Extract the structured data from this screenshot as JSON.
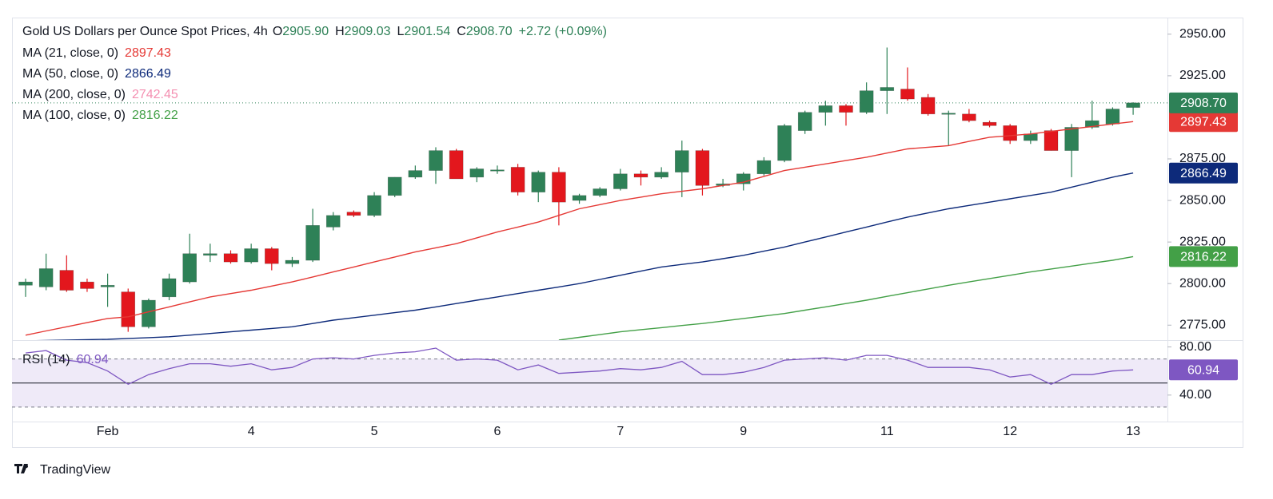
{
  "brand": "TradingView",
  "chart_data": [
    {
      "type": "candlestick",
      "title": "Gold US Dollars per Ounce Spot Prices, 4h",
      "ohlc_keys": [
        "O",
        "H",
        "L",
        "C"
      ],
      "ohlc_labels": [
        "2905.90",
        "2909.03",
        "2901.54",
        "2908.70"
      ],
      "change": "+2.72 (+0.09%)",
      "up_color": "#2e8157",
      "down_color": "#e3171d",
      "last_price_line": true,
      "categories": [
        null,
        null,
        null,
        null,
        "Feb",
        null,
        null,
        null,
        null,
        null,
        null,
        "4",
        null,
        null,
        null,
        null,
        null,
        "5",
        null,
        null,
        null,
        null,
        null,
        "6",
        null,
        null,
        null,
        null,
        null,
        "7",
        null,
        null,
        null,
        null,
        null,
        "9",
        null,
        null,
        null,
        null,
        null,
        null,
        "11",
        null,
        null,
        null,
        null,
        null,
        "12",
        null,
        null,
        null,
        null,
        null,
        "13"
      ],
      "open": [
        2799,
        2798,
        2808,
        2801,
        2798,
        2795,
        2774,
        2792,
        2801,
        2817,
        2818,
        2813,
        2821,
        2812,
        2814,
        2834,
        2843,
        2841,
        2853,
        2864,
        2868,
        2880,
        2864,
        2868,
        2870,
        2855,
        2867,
        2850,
        2853,
        2857,
        2866,
        2864,
        2867,
        2880,
        2859,
        2860,
        2866,
        2874,
        2892,
        2903,
        2907,
        2903,
        2916,
        2917,
        2912,
        2902,
        2902,
        2897,
        2895,
        2886,
        2892,
        2880,
        2894,
        2896,
        2905.9
      ],
      "high": [
        2803,
        2818,
        2817,
        2803,
        2806,
        2797,
        2791,
        2806,
        2830,
        2824,
        2820,
        2824,
        2822,
        2816,
        2845,
        2843,
        2844,
        2855,
        2864,
        2871,
        2882,
        2881,
        2870,
        2871,
        2872,
        2868,
        2870,
        2854,
        2858,
        2869,
        2868,
        2870,
        2886,
        2881,
        2863,
        2867,
        2876,
        2896,
        2904,
        2910,
        2908,
        2921,
        2942,
        2930,
        2914,
        2904,
        2905,
        2898,
        2896,
        2892,
        2893,
        2896,
        2910,
        2906,
        2909.03
      ],
      "low": [
        2792,
        2796,
        2795,
        2795,
        2786,
        2771,
        2773,
        2790,
        2800,
        2813,
        2812,
        2812,
        2808,
        2810,
        2813,
        2832,
        2840,
        2840,
        2852,
        2863,
        2860,
        2863,
        2861,
        2866,
        2853,
        2849,
        2835,
        2848,
        2852,
        2856,
        2859,
        2863,
        2852,
        2853,
        2858,
        2856,
        2865,
        2873,
        2890,
        2895,
        2895,
        2902,
        2902,
        2910,
        2901,
        2883,
        2897,
        2894,
        2884,
        2884,
        2880,
        2864,
        2893,
        2895,
        2901.54
      ],
      "close": [
        2801,
        2809,
        2796,
        2797,
        2799,
        2774,
        2790,
        2803,
        2818,
        2818,
        2813,
        2821,
        2812,
        2814,
        2835,
        2841,
        2841,
        2853,
        2864,
        2868,
        2880,
        2863,
        2869,
        2868.4,
        2855,
        2867,
        2849,
        2853,
        2857,
        2866,
        2864,
        2867,
        2880,
        2859,
        2860,
        2866,
        2874,
        2895,
        2903,
        2907,
        2903,
        2916,
        2918,
        2911,
        2902,
        2902.5,
        2898,
        2895,
        2886,
        2890,
        2880,
        2894,
        2898,
        2905,
        2908.7
      ],
      "ylim": [
        2766,
        2960
      ],
      "yticks": [
        {
          "value": 2775,
          "label": "2775.00"
        },
        {
          "value": 2800,
          "label": "2800.00"
        },
        {
          "value": 2825,
          "label": "2825.00"
        },
        {
          "value": 2850,
          "label": "2850.00"
        },
        {
          "value": 2875,
          "label": "2875.00"
        },
        {
          "value": 2925,
          "label": "2925.00"
        },
        {
          "value": 2950,
          "label": "2950.00"
        }
      ],
      "moving_averages": [
        {
          "name": "MA (21, close, 0)",
          "value_label": "2897.43",
          "color": "#e53935",
          "values": [
            2769,
            2771.5,
            2774,
            2776.5,
            2779,
            2780,
            2783,
            2786,
            2789,
            2792,
            2794,
            2796,
            2798.5,
            2801,
            2804,
            2807,
            2810,
            2813,
            2816,
            2819,
            2821.5,
            2824,
            2827.5,
            2831,
            2834,
            2837,
            2841,
            2845,
            2847.5,
            2850,
            2852,
            2854,
            2855.5,
            2857,
            2859,
            2861,
            2864.5,
            2868,
            2870,
            2872,
            2874,
            2876,
            2878.5,
            2881,
            2882,
            2883,
            2885.5,
            2888,
            2889,
            2890,
            2891.5,
            2893,
            2894.5,
            2896,
            2897.43
          ]
        },
        {
          "name": "MA (50, close, 0)",
          "value_label": "2866.49",
          "color": "#0d2a7a",
          "values": [
            2765.5,
            2765.8,
            2766,
            2766.3,
            2766.5,
            2767,
            2767.5,
            2768,
            2769,
            2770,
            2771,
            2772,
            2773,
            2774,
            2776,
            2778,
            2779.5,
            2781,
            2782.5,
            2784,
            2786,
            2788,
            2790,
            2792,
            2794,
            2796,
            2798,
            2800,
            2802.5,
            2805,
            2807.5,
            2810,
            2811.5,
            2813,
            2815,
            2817,
            2819.5,
            2822,
            2825,
            2828,
            2831,
            2834,
            2837,
            2840,
            2842.5,
            2845,
            2847,
            2849,
            2851,
            2853,
            2855,
            2858,
            2861,
            2864,
            2866.49
          ]
        },
        {
          "name": "MA (200, close, 0)",
          "value_label": "2742.45",
          "color": "#f48fb1"
        },
        {
          "name": "MA (100, close, 0)",
          "value_label": "2816.22",
          "color": "#43a047",
          "values": [
            null,
            null,
            null,
            null,
            null,
            null,
            null,
            null,
            null,
            null,
            null,
            null,
            null,
            null,
            null,
            null,
            null,
            null,
            null,
            null,
            null,
            null,
            null,
            null,
            null,
            null,
            2766,
            2767.7,
            2769.3,
            2771,
            2772.3,
            2773.5,
            2774.8,
            2776,
            2777.5,
            2779,
            2780.5,
            2782,
            2784,
            2786,
            2788,
            2790,
            2792.3,
            2794.5,
            2796.8,
            2799,
            2801,
            2803,
            2805,
            2807,
            2808.8,
            2810.5,
            2812.3,
            2814,
            2816.22
          ]
        }
      ]
    },
    {
      "type": "line",
      "name": "RSI (14)",
      "value_label": "60.94",
      "color": "#7e57c2",
      "fill": "#efeaf8",
      "values": [
        75,
        77,
        69,
        67,
        60,
        49,
        57,
        62,
        66,
        66,
        64,
        66,
        61,
        63,
        70,
        71,
        70,
        73,
        75,
        76,
        79,
        69,
        70,
        69,
        61,
        65,
        58,
        59,
        60,
        62,
        61,
        63,
        68,
        57,
        57,
        59,
        63,
        69,
        70,
        71,
        69,
        73,
        73,
        69,
        63,
        63,
        63,
        61,
        55,
        57,
        49,
        57,
        57,
        60,
        60.94
      ],
      "ylim": [
        18,
        85
      ],
      "yticks": [
        {
          "value": 40,
          "label": "40.00"
        },
        {
          "value": 80,
          "label": "80.00"
        }
      ],
      "bands": [
        70,
        50,
        30
      ]
    }
  ]
}
